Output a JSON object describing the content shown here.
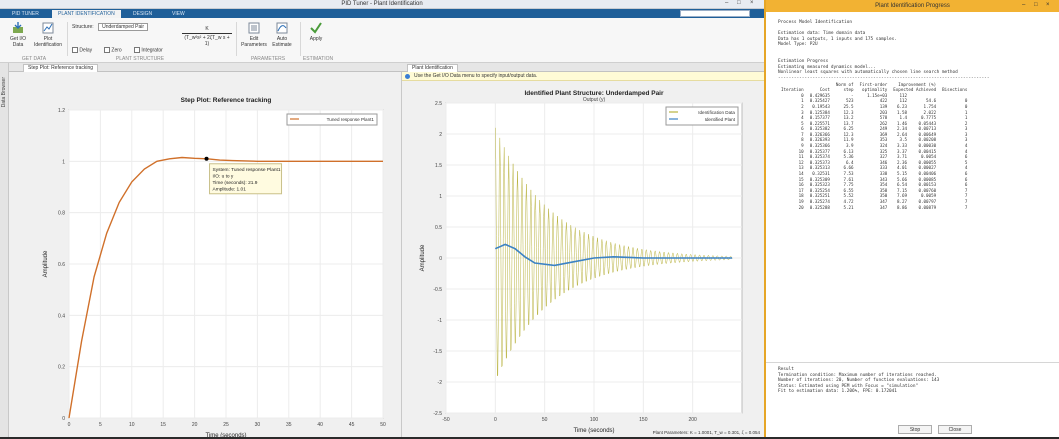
{
  "app": {
    "title": "PID Tuner - Plant Identification",
    "window_buttons": [
      "–",
      "□",
      "×"
    ]
  },
  "ribbon_tabs": [
    {
      "label": "PID TUNER",
      "active": false
    },
    {
      "label": "PLANT IDENTIFICATION",
      "active": true
    },
    {
      "label": "DESIGN",
      "active": false
    },
    {
      "label": "VIEW",
      "active": false
    }
  ],
  "ribbon": {
    "get_io_data": "Get I/O Data",
    "plot_identification": "Plot Identification",
    "structure_label": "Structure:",
    "structure_value": "Underdamped Pair",
    "delay_label": "Delay",
    "zero_label": "Zero",
    "integrator_label": "Integrator",
    "formula_num": "K",
    "formula_den": "(T_w²s² + 2ζT_w s + 1)",
    "edit_parameters": "Edit Parameters",
    "auto_estimate": "Auto Estimate",
    "apply": "Apply",
    "group_labels": [
      "GET DATA",
      "PLANT STRUCTURE",
      "PARAMETERS",
      "ESTIMATION"
    ]
  },
  "side_strip": "Data Browser",
  "tab_left": "Step Plot: Reference tracking",
  "tab_right": "Plant Identification",
  "infobar": "Use the Get I/O Data menu to specify input/output data.",
  "status": "Plant Parameters: K = 1.0001, T_w = 0.301, ζ = 0.054",
  "chart_data": [
    {
      "type": "line",
      "title": "Step Plot: Reference tracking",
      "xlabel": "Time (seconds)",
      "ylabel": "Amplitude",
      "xlim": [
        0,
        50
      ],
      "ylim": [
        0,
        1.2
      ],
      "xticks": [
        "0",
        "5",
        "10",
        "15",
        "20",
        "25",
        "30",
        "35",
        "40",
        "45",
        "50"
      ],
      "yticks": [
        "0",
        "0.2",
        "0.4",
        "0.6",
        "0.8",
        "1",
        "1.2"
      ],
      "series": [
        {
          "name": "Tuned response Plant1",
          "color": "#d0702a",
          "x": [
            0,
            2,
            4,
            6,
            8,
            10,
            12,
            14,
            16,
            18,
            20,
            22,
            24,
            26,
            30,
            35,
            40,
            45,
            50
          ],
          "y": [
            0,
            0.3,
            0.55,
            0.72,
            0.84,
            0.92,
            0.97,
            1.0,
            1.01,
            1.015,
            1.012,
            1.01,
            1.005,
            1.003,
            1.0,
            1.0,
            1.0,
            1.0,
            1.0
          ]
        }
      ],
      "datatip": {
        "lines": [
          "System: Tuned response Plant1",
          "I/O: u to y",
          "Time (seconds): 21.9",
          "Amplitude: 1.01"
        ],
        "x": 21.9,
        "y": 1.01
      },
      "grid": true,
      "legend_position": "top-right"
    },
    {
      "type": "line",
      "title": "Identified Plant Structure: Underdamped Pair",
      "subtitle": "Output (y)",
      "xlabel": "Time (seconds)",
      "ylabel": "Amplitude",
      "xlim": [
        -50,
        250
      ],
      "ylim": [
        -2.5,
        2.5
      ],
      "xticks": [
        "-50",
        "0",
        "50",
        "100",
        "150",
        "200"
      ],
      "yticks": [
        "-2.5",
        "-2",
        "-1.5",
        "-1",
        "-0.5",
        "0",
        "0.5",
        "1",
        "1.5",
        "2",
        "2.5"
      ],
      "series": [
        {
          "name": "Identification Data",
          "color": "#b9b340",
          "kind": "oscillation",
          "start": 0,
          "end": 240,
          "amplitude": 2.1,
          "decay": 0.018,
          "period": 4.5
        },
        {
          "name": "Identified Plant",
          "color": "#3b82c4",
          "kind": "smooth",
          "x": [
            0,
            10,
            20,
            30,
            40,
            60,
            80,
            100,
            120,
            150,
            180,
            210,
            240
          ],
          "y": [
            0.15,
            0.22,
            0.15,
            0.02,
            -0.08,
            -0.12,
            -0.06,
            0.0,
            0.02,
            0.0,
            0.0,
            0.0,
            0.0
          ]
        }
      ],
      "grid": true,
      "legend_position": "top-right"
    }
  ],
  "dialog": {
    "title": "Plant Identification Progress",
    "window_buttons": [
      "–",
      "□",
      "×"
    ],
    "header_lines": [
      "Process Model Identification",
      "",
      "Estimation data: Time domain data",
      "Data has 1 outputs, 1 inputs and 175 samples.",
      "Model Type: P2U",
      "",
      "",
      "Estimation Progress",
      "Estimating measured dynamics model...",
      "Nonlinear least squares with automatically chosen line search method",
      "--------------------------------------------------------------------------------"
    ],
    "columns_row1": [
      "",
      "",
      "Norm of",
      "First-order",
      "Improvement (%)",
      ""
    ],
    "columns_row2": [
      "Iteration",
      "Cost",
      "step",
      "optimality",
      "Expected  Achieved",
      "Bisections"
    ],
    "rows": [
      [
        "0",
        "0.429635",
        "-",
        "1.15e+03",
        "112",
        "",
        ""
      ],
      [
        "1",
        "0.325427",
        "523",
        "422",
        "112",
        "54.6",
        "0"
      ],
      [
        "2",
        "0.19543",
        "25.5",
        "139",
        "6.23",
        "1.754",
        "0"
      ],
      [
        "3",
        "0.125384",
        "12.3",
        "203",
        "1.58",
        "2.022",
        "1"
      ],
      [
        "4",
        "0.157377",
        "13.2",
        "578",
        "1.4",
        "0.7775",
        "1"
      ],
      [
        "5",
        "0.225571",
        "13.7",
        "262",
        "1.46",
        "0.05443",
        "2"
      ],
      [
        "6",
        "0.325382",
        "6.25",
        "249",
        "2.34",
        "0.00713",
        "3"
      ],
      [
        "7",
        "0.326366",
        "12.3",
        "369",
        "2.64",
        "0.00649",
        "3"
      ],
      [
        "8",
        "0.326393",
        "11.9",
        "353",
        "3.5",
        "0.00208",
        "3"
      ],
      [
        "9",
        "0.325366",
        "3.9",
        "324",
        "3.33",
        "0.00030",
        "4"
      ],
      [
        "10",
        "0.325377",
        "6.13",
        "325",
        "3.37",
        "0.00415",
        "4"
      ],
      [
        "11",
        "0.325374",
        "5.36",
        "327",
        "3.71",
        "0.0054",
        "6"
      ],
      [
        "12",
        "0.325373",
        "6.4",
        "346",
        "2.36",
        "0.00055",
        "5"
      ],
      [
        "13",
        "0.325313",
        "6.66",
        "333",
        "4.01",
        "0.00027",
        "4"
      ],
      [
        "14",
        "0.32531",
        "7.53",
        "338",
        "5.15",
        "0.00406",
        "6"
      ],
      [
        "15",
        "0.325309",
        "7.61",
        "343",
        "5.66",
        "0.00085",
        "6"
      ],
      [
        "16",
        "0.325323",
        "7.75",
        "354",
        "6.54",
        "0.00153",
        "6"
      ],
      [
        "17",
        "0.325254",
        "6.55",
        "358",
        "7.15",
        "0.00760",
        "7"
      ],
      [
        "18",
        "0.325251",
        "5.52",
        "350",
        "7.69",
        "0.0059",
        "7"
      ],
      [
        "19",
        "0.325274",
        "4.72",
        "347",
        "8.27",
        "0.00797",
        "7"
      ],
      [
        "20",
        "0.325288",
        "5.21",
        "347",
        "8.86",
        "0.00879",
        "7"
      ]
    ],
    "result_lines": [
      "Result",
      "Termination condition: Maximum number of iterations reached.",
      "Number of iterations: 20, Number of function evaluations: 143",
      "",
      "Status: Estimated using PEM with Focus = \"simulation\"",
      "Fit to estimation data: 1.206%, FPE: 0.172041"
    ],
    "stop_button": "Stop",
    "close_button": "Close"
  }
}
